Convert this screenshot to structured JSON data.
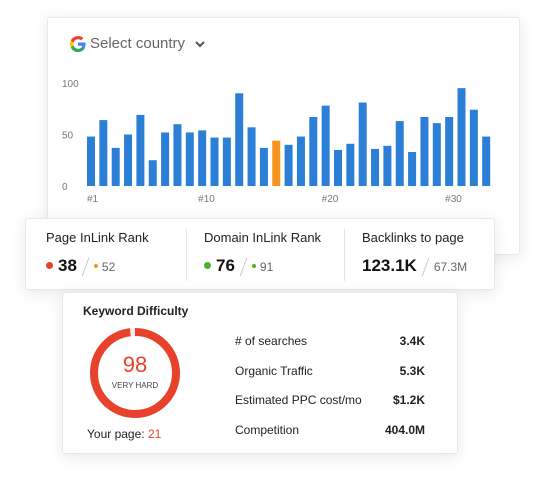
{
  "country_selector": {
    "label": "Select country"
  },
  "chart_data": {
    "type": "bar",
    "categories": [
      "#1",
      null,
      null,
      null,
      null,
      null,
      null,
      null,
      null,
      "#10",
      null,
      null,
      null,
      null,
      null,
      null,
      null,
      null,
      null,
      "#20",
      null,
      null,
      null,
      null,
      null,
      null,
      null,
      null,
      null,
      "#30",
      null,
      null,
      null
    ],
    "values": [
      48,
      64,
      37,
      50,
      69,
      25,
      52,
      60,
      52,
      54,
      47,
      47,
      90,
      57,
      37,
      44,
      40,
      48,
      67,
      78,
      35,
      41,
      81,
      36,
      39,
      63,
      33,
      67,
      61,
      67,
      95,
      74,
      48
    ],
    "colors": [
      "#2b7fd6",
      "#2b7fd6",
      "#2b7fd6",
      "#2b7fd6",
      "#2b7fd6",
      "#2b7fd6",
      "#2b7fd6",
      "#2b7fd6",
      "#2b7fd6",
      "#2b7fd6",
      "#2b7fd6",
      "#2b7fd6",
      "#2b7fd6",
      "#2b7fd6",
      "#2b7fd6",
      "#f7941d",
      "#2b7fd6",
      "#2b7fd6",
      "#2b7fd6",
      "#2b7fd6",
      "#2b7fd6",
      "#2b7fd6",
      "#2b7fd6",
      "#2b7fd6",
      "#2b7fd6",
      "#2b7fd6",
      "#2b7fd6",
      "#2b7fd6",
      "#2b7fd6",
      "#2b7fd6",
      "#2b7fd6",
      "#2b7fd6",
      "#2b7fd6"
    ],
    "ylim": [
      0,
      100
    ],
    "yticks": [
      0,
      50,
      100
    ]
  },
  "ranks": [
    {
      "label": "Page InLink Rank",
      "value": "38",
      "secondary": "52",
      "color": "#e8412c",
      "secondary_color": "#f7941d"
    },
    {
      "label": "Domain InLink Rank",
      "value": "76",
      "secondary": "91",
      "color": "#4caf2e",
      "secondary_color": "#4caf2e"
    },
    {
      "label": "Backlinks to page",
      "value": "123.1K",
      "secondary": "67.3M"
    }
  ],
  "keyword_difficulty": {
    "title": "Keyword Difficulty",
    "score": 98,
    "level": "VERY HARD",
    "color": "#e8412c",
    "your_page_label": "Your page:",
    "your_page_value": 21,
    "metrics": [
      {
        "label": "# of searches",
        "value": "3.4K"
      },
      {
        "label": "Organic Traffic",
        "value": "5.3K"
      },
      {
        "label": "Estimated PPC cost/mo",
        "value": "$1.2K"
      },
      {
        "label": "Competition",
        "value": "404.0M"
      }
    ]
  }
}
